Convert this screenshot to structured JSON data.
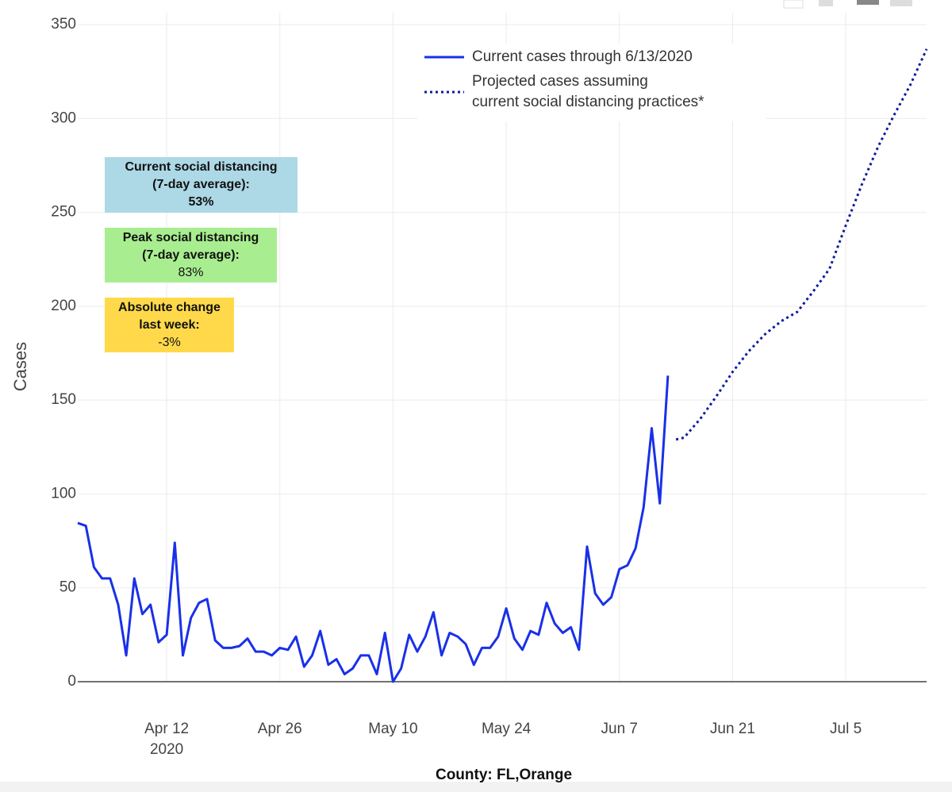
{
  "chart_data": {
    "type": "line",
    "y_label": "Cases",
    "x_label": "County: FL,Orange",
    "xlim": [
      "2020-04-01",
      "2020-07-15"
    ],
    "xticks": [
      {
        "value": "2020-04-12",
        "label": "Apr 12\n2020"
      },
      {
        "value": "2020-04-26",
        "label": "Apr 26"
      },
      {
        "value": "2020-05-10",
        "label": "May 10"
      },
      {
        "value": "2020-05-24",
        "label": "May 24"
      },
      {
        "value": "2020-06-07",
        "label": "Jun 7"
      },
      {
        "value": "2020-06-21",
        "label": "Jun 21"
      },
      {
        "value": "2020-07-05",
        "label": "Jul 5"
      }
    ],
    "ylim": [
      0,
      350
    ],
    "yticks": [
      0,
      50,
      100,
      150,
      200,
      250,
      300,
      350
    ],
    "grid": true,
    "series": [
      {
        "name": "Current cases through 6/13/2020",
        "color": "#1a30e8",
        "dash": "solid",
        "x": [
          "2020-04-01",
          "2020-04-02",
          "2020-04-03",
          "2020-04-04",
          "2020-04-05",
          "2020-04-06",
          "2020-04-07",
          "2020-04-08",
          "2020-04-09",
          "2020-04-10",
          "2020-04-11",
          "2020-04-12",
          "2020-04-13",
          "2020-04-14",
          "2020-04-15",
          "2020-04-16",
          "2020-04-17",
          "2020-04-18",
          "2020-04-19",
          "2020-04-20",
          "2020-04-21",
          "2020-04-22",
          "2020-04-23",
          "2020-04-24",
          "2020-04-25",
          "2020-04-26",
          "2020-04-27",
          "2020-04-28",
          "2020-04-29",
          "2020-04-30",
          "2020-05-01",
          "2020-05-02",
          "2020-05-03",
          "2020-05-04",
          "2020-05-05",
          "2020-05-06",
          "2020-05-07",
          "2020-05-08",
          "2020-05-09",
          "2020-05-10",
          "2020-05-11",
          "2020-05-12",
          "2020-05-13",
          "2020-05-14",
          "2020-05-15",
          "2020-05-16",
          "2020-05-17",
          "2020-05-18",
          "2020-05-19",
          "2020-05-20",
          "2020-05-21",
          "2020-05-22",
          "2020-05-23",
          "2020-05-24",
          "2020-05-25",
          "2020-05-26",
          "2020-05-27",
          "2020-05-28",
          "2020-05-29",
          "2020-05-30",
          "2020-05-31",
          "2020-06-01",
          "2020-06-02",
          "2020-06-03",
          "2020-06-04",
          "2020-06-05",
          "2020-06-06",
          "2020-06-07",
          "2020-06-08",
          "2020-06-09",
          "2020-06-10",
          "2020-06-11",
          "2020-06-12",
          "2020-06-13"
        ],
        "values": [
          84.5,
          83,
          61,
          55,
          55,
          41,
          14,
          55,
          36,
          41,
          21,
          25,
          74,
          14,
          34,
          42,
          44,
          22,
          18,
          18,
          19,
          23,
          16,
          16,
          14,
          18,
          17,
          24,
          8,
          14,
          27,
          9,
          12,
          4,
          7,
          14,
          14,
          4,
          26,
          0,
          7,
          25,
          16,
          24,
          37,
          14,
          26,
          24,
          20,
          9,
          18,
          18,
          24,
          39,
          23,
          17,
          27,
          25,
          42,
          31,
          26,
          29,
          17,
          72,
          47,
          41,
          45,
          60,
          62,
          71,
          93,
          135,
          95,
          163
        ]
      },
      {
        "name": "Projected cases assuming\ncurrent social distancing practices*",
        "color": "#0d1c9c",
        "dash": "dot",
        "x": [
          "2020-06-14",
          "2020-06-15",
          "2020-06-17",
          "2020-06-19",
          "2020-06-21",
          "2020-06-23",
          "2020-06-25",
          "2020-06-27",
          "2020-06-29",
          "2020-07-01",
          "2020-07-03",
          "2020-07-05",
          "2020-07-07",
          "2020-07-09",
          "2020-07-11",
          "2020-07-13",
          "2020-07-15"
        ],
        "values": [
          129,
          130,
          140,
          152,
          165,
          176,
          185,
          192,
          197,
          208,
          220,
          243,
          265,
          285,
          302,
          318,
          337
        ]
      }
    ],
    "annotations": [
      {
        "color": "#add8e6",
        "lines": [
          {
            "text": "Current social distancing",
            "bold": true
          },
          {
            "text": "(7-day average):",
            "bold": true
          },
          {
            "text": "53%",
            "bold": true
          }
        ]
      },
      {
        "color": "#a8ee90",
        "lines": [
          {
            "text": "Peak social distancing",
            "bold": true
          },
          {
            "text": "(7-day average):",
            "bold": true
          },
          {
            "text": "83%",
            "bold": false
          }
        ]
      },
      {
        "color": "#ffd94a",
        "lines": [
          {
            "text": "Absolute change",
            "bold": true
          },
          {
            "text": "last week:",
            "bold": true
          },
          {
            "text": "-3%",
            "bold": false
          }
        ]
      }
    ]
  }
}
